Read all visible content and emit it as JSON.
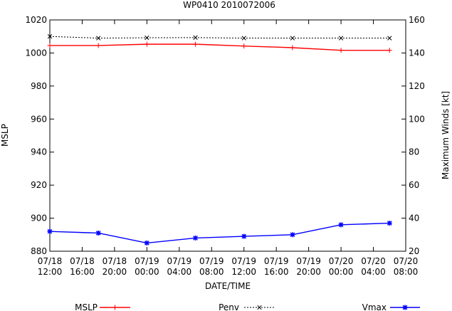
{
  "chart_data": {
    "type": "line",
    "title": "WP0410 2010072006",
    "xlabel": "DATE/TIME",
    "ylabel": "MSLP",
    "y2label": "Maximum Winds [kt]",
    "ylim": [
      880,
      1020
    ],
    "y2lim": [
      20,
      160
    ],
    "yticks": [
      880,
      900,
      920,
      940,
      960,
      980,
      1000,
      1020
    ],
    "y2ticks": [
      20,
      40,
      60,
      80,
      100,
      120,
      140,
      160
    ],
    "xlim": [
      0,
      44
    ],
    "xticks": [
      {
        "x": 0,
        "date": "07/18",
        "time": "12:00"
      },
      {
        "x": 4,
        "date": "07/18",
        "time": "16:00"
      },
      {
        "x": 8,
        "date": "07/18",
        "time": "20:00"
      },
      {
        "x": 12,
        "date": "07/19",
        "time": "00:00"
      },
      {
        "x": 16,
        "date": "07/19",
        "time": "04:00"
      },
      {
        "x": 20,
        "date": "07/19",
        "time": "08:00"
      },
      {
        "x": 24,
        "date": "07/19",
        "time": "12:00"
      },
      {
        "x": 28,
        "date": "07/19",
        "time": "16:00"
      },
      {
        "x": 32,
        "date": "07/19",
        "time": "20:00"
      },
      {
        "x": 36,
        "date": "07/20",
        "time": "00:00"
      },
      {
        "x": 40,
        "date": "07/20",
        "time": "04:00"
      },
      {
        "x": 44,
        "date": "07/20",
        "time": "08:00"
      }
    ],
    "x": [
      0,
      6,
      12,
      18,
      24,
      30,
      36,
      42
    ],
    "series": [
      {
        "name": "MSLP",
        "axis": "left",
        "color": "#ff0000",
        "marker": "plus",
        "values": [
          1004.5,
          1004.5,
          1005.3,
          1005.3,
          1004.2,
          1003.2,
          1001.6,
          1001.6
        ]
      },
      {
        "name": "Penv",
        "axis": "left",
        "color": "#000000",
        "marker": "cross",
        "dashed": true,
        "values": [
          1010.0,
          1009.0,
          1009.2,
          1009.3,
          1009.0,
          1009.0,
          1009.0,
          1009.0
        ]
      },
      {
        "name": "Vmax",
        "axis": "right",
        "color": "#0000ff",
        "marker": "star",
        "values": [
          32,
          31,
          25,
          28,
          29,
          30,
          36,
          37
        ]
      }
    ],
    "grid": false,
    "legend": "bottom"
  }
}
